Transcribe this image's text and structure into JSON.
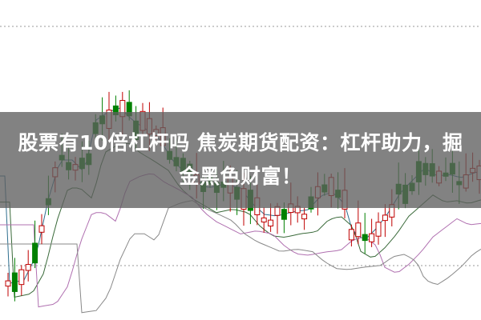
{
  "headline": "股票有10倍杠杆吗 焦炭期货配资：杠杆助力，掘金黑色财富！",
  "colors": {
    "up": "#c00000",
    "down": "#008000",
    "overlay": "#5f5f5f",
    "ma_lines": [
      "#2f6f8f",
      "#3a6a3a",
      "#b070b0",
      "#888888"
    ]
  }
}
